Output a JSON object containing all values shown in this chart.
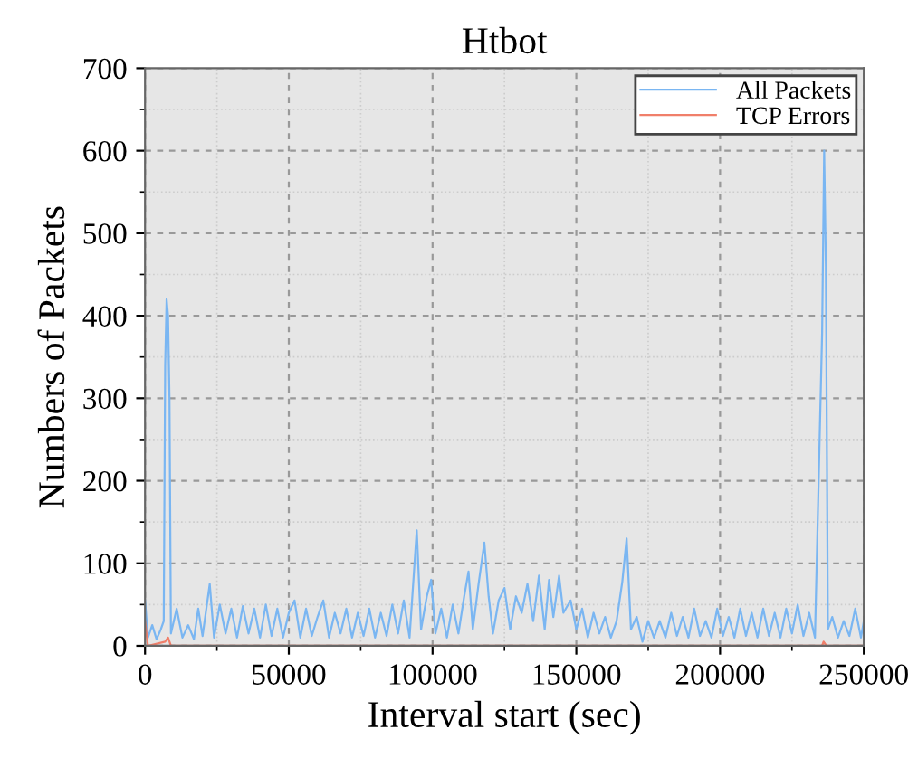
{
  "chart_data": {
    "type": "line",
    "title": "Htbot",
    "xlabel": "Interval start (sec)",
    "ylabel": "Numbers of Packets",
    "xlim": [
      0,
      250000
    ],
    "ylim": [
      0,
      700
    ],
    "xticks": [
      0,
      50000,
      100000,
      150000,
      200000,
      250000
    ],
    "yticks": [
      0,
      100,
      200,
      300,
      400,
      500,
      600,
      700
    ],
    "grid": true,
    "legend": "top right",
    "series": [
      {
        "name": "All Packets",
        "color": "#7ab6f2",
        "x": [
          0,
          1000,
          2500,
          4000,
          5500,
          6500,
          7000,
          7500,
          8000,
          8500,
          9000,
          11000,
          13000,
          15000,
          17000,
          18500,
          20000,
          22500,
          24000,
          26000,
          28000,
          30000,
          32000,
          34000,
          36000,
          38000,
          40000,
          42000,
          44000,
          46000,
          48000,
          50000,
          52000,
          54000,
          56000,
          58000,
          60000,
          62000,
          64000,
          66000,
          68000,
          70000,
          72000,
          74000,
          76000,
          78000,
          80000,
          82000,
          84000,
          86000,
          88000,
          90000,
          92000,
          94500,
          96000,
          98000,
          99500,
          101000,
          103000,
          105000,
          107000,
          109000,
          111000,
          112500,
          114000,
          116000,
          118000,
          119500,
          121000,
          123000,
          125000,
          127000,
          129000,
          131000,
          133000,
          135000,
          137000,
          139000,
          140500,
          142000,
          144000,
          145500,
          148000,
          150000,
          152000,
          154000,
          156000,
          158000,
          160000,
          162000,
          164000,
          166000,
          167500,
          169000,
          171000,
          173000,
          175000,
          177000,
          179000,
          181000,
          183000,
          185000,
          187000,
          189000,
          191000,
          193000,
          195000,
          197000,
          199000,
          201000,
          203000,
          205000,
          207000,
          209000,
          211000,
          213000,
          215000,
          217000,
          219000,
          221000,
          223000,
          225000,
          227000,
          229000,
          231000,
          233000,
          235500,
          236200,
          236800,
          237500,
          239000,
          241000,
          243000,
          245000,
          247000,
          249000,
          250000
        ],
        "values": [
          55,
          10,
          25,
          8,
          20,
          30,
          340,
          420,
          400,
          300,
          15,
          45,
          10,
          25,
          8,
          45,
          12,
          75,
          10,
          50,
          15,
          45,
          10,
          48,
          15,
          45,
          10,
          50,
          12,
          45,
          10,
          40,
          55,
          10,
          45,
          12,
          35,
          55,
          10,
          40,
          15,
          45,
          10,
          40,
          12,
          45,
          10,
          40,
          12,
          50,
          15,
          55,
          10,
          140,
          20,
          60,
          80,
          15,
          45,
          10,
          50,
          15,
          60,
          90,
          20,
          75,
          125,
          60,
          15,
          55,
          70,
          20,
          60,
          40,
          75,
          30,
          85,
          20,
          80,
          35,
          85,
          40,
          55,
          20,
          45,
          10,
          40,
          15,
          35,
          10,
          30,
          78,
          130,
          20,
          35,
          5,
          30,
          10,
          30,
          10,
          40,
          12,
          35,
          10,
          45,
          12,
          30,
          10,
          45,
          12,
          35,
          10,
          45,
          12,
          40,
          10,
          45,
          12,
          40,
          10,
          45,
          15,
          50,
          12,
          40,
          10,
          380,
          600,
          460,
          20,
          35,
          10,
          30,
          12,
          45,
          10,
          30
        ]
      },
      {
        "name": "TCP Errors",
        "color": "#f07f6a",
        "x": [
          0,
          1000,
          7000,
          8000,
          9000,
          235500,
          236000,
          237000,
          250000
        ],
        "values": [
          30,
          0,
          5,
          10,
          0,
          0,
          5,
          0,
          0
        ]
      }
    ]
  }
}
